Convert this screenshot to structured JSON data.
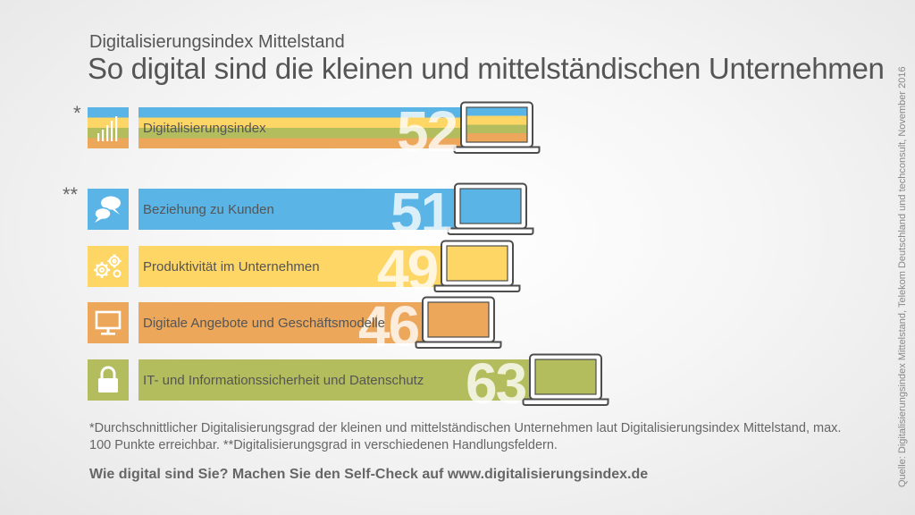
{
  "header": {
    "eyebrow": "Digitalisierungsindex Mittelstand",
    "headline": "So digital sind die kleinen und mittelständischen Unternehmen"
  },
  "colors": {
    "blue": "#5ab4e5",
    "yellow": "#fdd665",
    "orange": "#eca75b",
    "green": "#b4bd5d"
  },
  "chart_data": {
    "type": "bar",
    "orientation": "horizontal",
    "categories": [
      "Digitalisierungsindex",
      "Beziehung zu Kunden",
      "Produktivität im Unternehmen",
      "Digitale Angebote und Geschäftsmodelle",
      "IT- und Informationssicherheit und Datenschutz"
    ],
    "values": [
      52,
      51,
      49,
      46,
      63
    ],
    "markers": [
      "*",
      "**",
      "",
      "",
      ""
    ],
    "icons": [
      "bar-chart-icon",
      "speech-bubbles-icon",
      "gears-icon",
      "monitor-icon",
      "padlock-icon"
    ],
    "colors": [
      "multicolor",
      "#5ab4e5",
      "#fdd665",
      "#eca75b",
      "#b4bd5d"
    ],
    "xlim": [
      0,
      100
    ]
  },
  "footnote": "*Durchschnittlicher Digitalisierungsgrad der kleinen und mittelständischen Unternehmen laut Digitalisierungsindex Mittelstand, max. 100 Punkte erreichbar. **Digitalisierungsgrad in verschiedenen Handlungsfeldern.",
  "cta": "Wie digital sind Sie? Machen Sie den Self-Check auf www.digitalisierungsindex.de",
  "source": "Quelle: Digitalisierungsindex Mittelstand, Telekom Deutschland und techconsult, November 2016"
}
